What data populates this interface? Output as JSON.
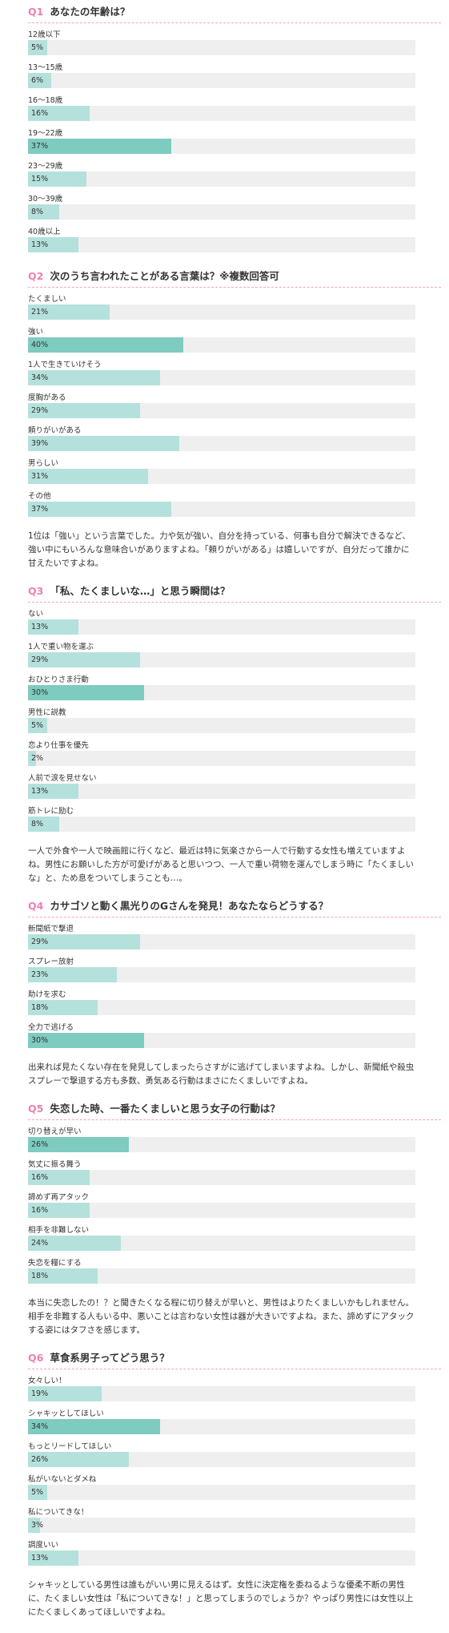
{
  "colors": {
    "accent": "#ee7fb4",
    "bar": "#b5e1dc",
    "bar_top": "#7ecbc0",
    "track": "#efefef"
  },
  "questions": [
    {
      "num": "Q1",
      "title": "あなたの年齢は？",
      "options": [
        {
          "label": "12歳以下",
          "pct": "5%",
          "value": 5
        },
        {
          "label": "13～15歳",
          "pct": "6%",
          "value": 6
        },
        {
          "label": "16～18歳",
          "pct": "16%",
          "value": 16
        },
        {
          "label": "19～22歳",
          "pct": "37%",
          "value": 37,
          "top": true
        },
        {
          "label": "23～29歳",
          "pct": "15%",
          "value": 15
        },
        {
          "label": "30～39歳",
          "pct": "8%",
          "value": 8
        },
        {
          "label": "40歳以上",
          "pct": "13%",
          "value": 13
        }
      ],
      "comment": ""
    },
    {
      "num": "Q2",
      "title": "次のうち言われたことがある言葉は？※複数回答可",
      "options": [
        {
          "label": "たくましい",
          "pct": "21%",
          "value": 21
        },
        {
          "label": "強い",
          "pct": "40%",
          "value": 40,
          "top": true
        },
        {
          "label": "1人で生きていけそう",
          "pct": "34%",
          "value": 34
        },
        {
          "label": "度胸がある",
          "pct": "29%",
          "value": 29
        },
        {
          "label": "頼りがいがある",
          "pct": "39%",
          "value": 39
        },
        {
          "label": "男らしい",
          "pct": "31%",
          "value": 31
        },
        {
          "label": "その他",
          "pct": "37%",
          "value": 37
        }
      ],
      "comment": "1位は「強い」という言葉でした。力や気が強い、自分を持っている、何事も自分で解決できるなど、強い中にもいろんな意味合いがありますよね。「頼りがいがある」は嬉しいですが、自分だって誰かに甘えたいですよね。"
    },
    {
      "num": "Q3",
      "title": "「私、たくましいな…」と思う瞬間は？",
      "options": [
        {
          "label": "ない",
          "pct": "13%",
          "value": 13
        },
        {
          "label": "1人で重い物を運ぶ",
          "pct": "29%",
          "value": 29
        },
        {
          "label": "おひとりさま行動",
          "pct": "30%",
          "value": 30,
          "top": true
        },
        {
          "label": "男性に説教",
          "pct": "5%",
          "value": 5
        },
        {
          "label": "恋より仕事を優先",
          "pct": "2%",
          "value": 2
        },
        {
          "label": "人前で涙を見せない",
          "pct": "13%",
          "value": 13
        },
        {
          "label": "筋トレに励む",
          "pct": "8%",
          "value": 8
        }
      ],
      "comment": "一人で外食や一人で映画館に行くなど、最近は特に気楽さから一人で行動する女性も増えていますよね。男性にお願いした方が可愛げがあると思いつつ、一人で重い荷物を運んでしまう時に「たくましいな」と、ため息をついてしまうことも…。"
    },
    {
      "num": "Q4",
      "title": "カサゴソと動く黒光りのGさんを発見！あなたならどうする？",
      "options": [
        {
          "label": "新聞紙で撃退",
          "pct": "29%",
          "value": 29
        },
        {
          "label": "スプレー放射",
          "pct": "23%",
          "value": 23
        },
        {
          "label": "助けを求む",
          "pct": "18%",
          "value": 18
        },
        {
          "label": "全力で逃げる",
          "pct": "30%",
          "value": 30,
          "top": true
        }
      ],
      "comment": "出来れば見たくない存在を発見してしまったらさすがに逃げてしまいますよね。しかし、新聞紙や殺虫スプレーで撃退する方も多数、勇気ある行動はまさにたくましいですよね。"
    },
    {
      "num": "Q5",
      "title": "失恋した時、一番たくましいと思う女子の行動は？",
      "options": [
        {
          "label": "切り替えが早い",
          "pct": "26%",
          "value": 26,
          "top": true
        },
        {
          "label": "気丈に振る舞う",
          "pct": "16%",
          "value": 16
        },
        {
          "label": "諦めず再アタック",
          "pct": "16%",
          "value": 16
        },
        {
          "label": "相手を非難しない",
          "pct": "24%",
          "value": 24
        },
        {
          "label": "失恋を糧にする",
          "pct": "18%",
          "value": 18
        }
      ],
      "comment": "本当に失恋したの！？と聞きたくなる程に切り替えが早いと、男性はよりたくましいかもしれません。相手を非難する人もいる中、悪いことは言わない女性は器が大きいですよね。また、諦めずにアタックする姿にはタフさを感じます。"
    },
    {
      "num": "Q6",
      "title": "草食系男子ってどう思う？",
      "options": [
        {
          "label": "女々しい！",
          "pct": "19%",
          "value": 19
        },
        {
          "label": "シャキッとしてほしい",
          "pct": "34%",
          "value": 34,
          "top": true
        },
        {
          "label": "もっとリードしてほしい",
          "pct": "26%",
          "value": 26
        },
        {
          "label": "私がいないとダメね",
          "pct": "5%",
          "value": 5
        },
        {
          "label": "私についてきな！",
          "pct": "3%",
          "value": 3
        },
        {
          "label": "調度いい",
          "pct": "13%",
          "value": 13
        }
      ],
      "comment": "シャキッとしている男性は誰もがいい男に見えるはず。女性に決定権を委ねるような優柔不断の男性に、たくましい女性は「私についてきな！」と思ってしまうのでしょうか？やっぱり男性には女性以上にたくましくあってほしいですよね。"
    }
  ]
}
